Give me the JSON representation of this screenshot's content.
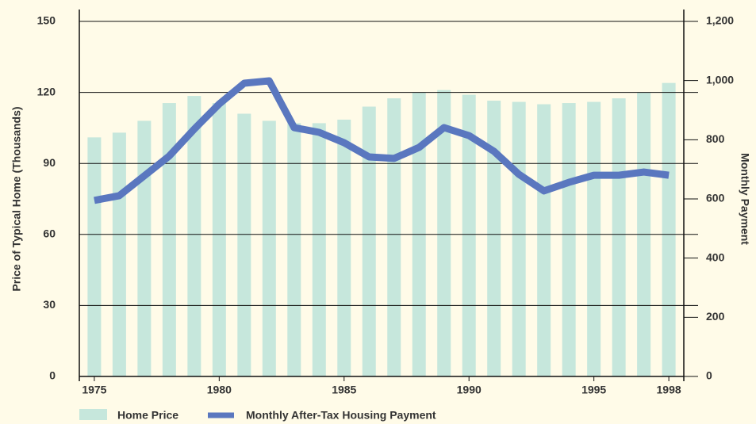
{
  "chart_data": {
    "type": "bar",
    "x": [
      1975,
      1976,
      1977,
      1978,
      1979,
      1980,
      1981,
      1982,
      1983,
      1984,
      1985,
      1986,
      1987,
      1988,
      1989,
      1990,
      1991,
      1992,
      1993,
      1994,
      1995,
      1996,
      1997,
      1998
    ],
    "xticks": [
      1975,
      1980,
      1985,
      1990,
      1995,
      1998
    ],
    "xlim": [
      1974.4,
      1998.6
    ],
    "ylabel": "Price of Typical Home (Thousands)",
    "y2label": "Monthly  Payment",
    "ylim": [
      0,
      150
    ],
    "yticks": [
      0,
      30,
      60,
      90,
      120,
      150
    ],
    "y2lim": [
      0,
      1200
    ],
    "y2ticks": [
      0,
      200,
      400,
      600,
      800,
      {
        "value": 1000,
        "label": "1,000"
      },
      {
        "value": 1200,
        "label": "1,200"
      }
    ],
    "grid": true,
    "series": [
      {
        "name": "Home Price",
        "type": "bar",
        "color": "#c6e7dc",
        "values": [
          101,
          103,
          108,
          115.5,
          118.5,
          115.5,
          111,
          108,
          107,
          107,
          108.5,
          114,
          117.5,
          120,
          121,
          119,
          116.5,
          116,
          115,
          115.5,
          116,
          117.5,
          120,
          124
        ]
      },
      {
        "name": "Monthly After-Tax Housing Payment",
        "type": "line",
        "axis": "y2",
        "color": "#5a77bf",
        "values": [
          595,
          611,
          678,
          745,
          836,
          921,
          991,
          999,
          841,
          825,
          790,
          742,
          737,
          774,
          841,
          814,
          761,
          683,
          627,
          656,
          680,
          680,
          691,
          680
        ]
      }
    ]
  }
}
